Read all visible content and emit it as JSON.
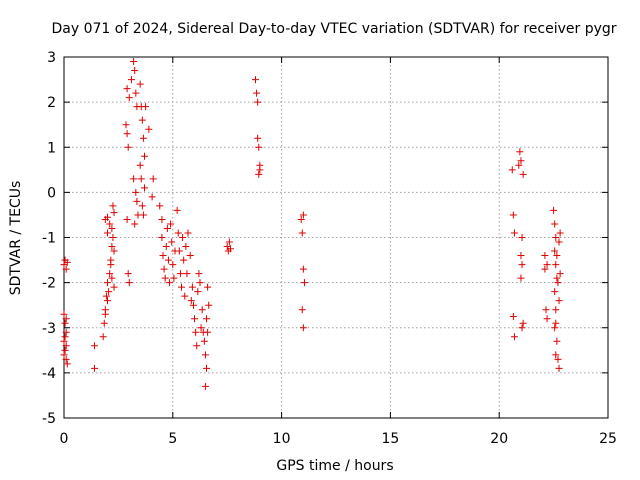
{
  "chart_data": {
    "type": "scatter",
    "title": "Day 071 of 2024, Sidereal Day-to-day VTEC variation (SDTVAR) for receiver pygr",
    "xlabel": "GPS time / hours",
    "ylabel": "SDTVAR / TECUs",
    "xlim": [
      0,
      25
    ],
    "ylim": [
      -5,
      3
    ],
    "xticks": [
      0,
      5,
      10,
      15,
      20,
      25
    ],
    "yticks": [
      -5,
      -4,
      -3,
      -2,
      -1,
      0,
      1,
      2,
      3
    ],
    "xtick_labels": [
      "0",
      "5",
      "10",
      "15",
      "20",
      "25"
    ],
    "ytick_labels": [
      "-5",
      "-4",
      "-3",
      "-2",
      "-1",
      "0",
      "1",
      "2",
      "3"
    ],
    "grid": true,
    "marker": "+",
    "color": "#e00000",
    "series": [
      {
        "name": "SDTVAR",
        "points": [
          [
            0.0,
            -1.6
          ],
          [
            0.05,
            -1.5
          ],
          [
            0.1,
            -1.7
          ],
          [
            0.15,
            -1.55
          ],
          [
            0.0,
            -2.7
          ],
          [
            0.05,
            -2.9
          ],
          [
            0.1,
            -3.1
          ],
          [
            0.0,
            -3.3
          ],
          [
            0.05,
            -3.5
          ],
          [
            0.1,
            -3.7
          ],
          [
            0.15,
            -3.8
          ],
          [
            0.0,
            -3.6
          ],
          [
            0.1,
            -3.4
          ],
          [
            0.05,
            -3.2
          ],
          [
            0.1,
            -2.8
          ],
          [
            1.4,
            -3.4
          ],
          [
            1.4,
            -3.9
          ],
          [
            1.8,
            -3.2
          ],
          [
            1.85,
            -2.9
          ],
          [
            1.9,
            -2.6
          ],
          [
            1.95,
            -2.3
          ],
          [
            2.0,
            -2.0
          ],
          [
            1.9,
            -2.7
          ],
          [
            2.0,
            -2.4
          ],
          [
            2.05,
            -2.2
          ],
          [
            2.1,
            -1.8
          ],
          [
            2.15,
            -1.5
          ],
          [
            2.2,
            -1.2
          ],
          [
            2.25,
            -1.0
          ],
          [
            2.3,
            -2.1
          ],
          [
            2.1,
            -0.7
          ],
          [
            2.0,
            -0.55
          ],
          [
            2.2,
            -0.8
          ],
          [
            2.25,
            -0.3
          ],
          [
            2.3,
            -0.45
          ],
          [
            1.9,
            -0.6
          ],
          [
            2.0,
            -0.9
          ],
          [
            2.15,
            -1.6
          ],
          [
            2.2,
            -1.9
          ],
          [
            2.3,
            -1.3
          ],
          [
            2.85,
            1.5
          ],
          [
            2.9,
            1.3
          ],
          [
            2.95,
            1.0
          ],
          [
            2.9,
            2.3
          ],
          [
            3.0,
            2.1
          ],
          [
            3.1,
            2.5
          ],
          [
            3.2,
            2.9
          ],
          [
            3.25,
            2.7
          ],
          [
            3.3,
            2.2
          ],
          [
            3.35,
            1.9
          ],
          [
            3.2,
            0.3
          ],
          [
            3.3,
            0.0
          ],
          [
            3.35,
            -0.2
          ],
          [
            3.4,
            -0.5
          ],
          [
            3.25,
            -0.7
          ],
          [
            2.9,
            -0.6
          ],
          [
            2.95,
            -1.8
          ],
          [
            3.0,
            -2.0
          ],
          [
            3.5,
            2.4
          ],
          [
            3.55,
            1.9
          ],
          [
            3.6,
            1.6
          ],
          [
            3.65,
            1.2
          ],
          [
            3.7,
            0.8
          ],
          [
            3.5,
            0.6
          ],
          [
            3.55,
            0.3
          ],
          [
            3.6,
            -0.3
          ],
          [
            3.65,
            -0.5
          ],
          [
            3.7,
            0.1
          ],
          [
            3.75,
            1.9
          ],
          [
            3.9,
            1.4
          ],
          [
            4.1,
            0.3
          ],
          [
            4.05,
            -0.1
          ],
          [
            4.4,
            -0.3
          ],
          [
            4.5,
            -0.6
          ],
          [
            4.5,
            -1.0
          ],
          [
            4.55,
            -1.4
          ],
          [
            4.6,
            -1.7
          ],
          [
            4.65,
            -1.9
          ],
          [
            4.7,
            -1.2
          ],
          [
            4.75,
            -0.8
          ],
          [
            4.8,
            -1.5
          ],
          [
            4.85,
            -2.0
          ],
          [
            4.9,
            -0.7
          ],
          [
            4.95,
            -1.1
          ],
          [
            5.0,
            -1.6
          ],
          [
            5.05,
            -1.9
          ],
          [
            5.1,
            -1.3
          ],
          [
            5.2,
            -0.4
          ],
          [
            5.25,
            -0.9
          ],
          [
            5.3,
            -1.3
          ],
          [
            5.35,
            -1.8
          ],
          [
            5.4,
            -2.1
          ],
          [
            5.45,
            -1.0
          ],
          [
            5.5,
            -1.5
          ],
          [
            5.55,
            -2.3
          ],
          [
            5.6,
            -1.2
          ],
          [
            5.65,
            -1.8
          ],
          [
            5.7,
            -0.9
          ],
          [
            5.8,
            -1.4
          ],
          [
            5.85,
            -2.4
          ],
          [
            5.9,
            -2.1
          ],
          [
            5.95,
            -2.5
          ],
          [
            6.0,
            -2.8
          ],
          [
            6.05,
            -3.1
          ],
          [
            6.1,
            -3.4
          ],
          [
            6.15,
            -2.2
          ],
          [
            6.2,
            -1.8
          ],
          [
            6.25,
            -2.0
          ],
          [
            6.3,
            -3.0
          ],
          [
            6.35,
            -2.6
          ],
          [
            6.4,
            -3.1
          ],
          [
            6.45,
            -3.3
          ],
          [
            6.5,
            -3.6
          ],
          [
            6.55,
            -3.9
          ],
          [
            6.5,
            -4.3
          ],
          [
            6.6,
            -2.1
          ],
          [
            6.65,
            -2.5
          ],
          [
            6.55,
            -2.8
          ],
          [
            6.6,
            -3.1
          ],
          [
            7.5,
            -1.2
          ],
          [
            7.55,
            -1.3
          ],
          [
            7.6,
            -1.1
          ],
          [
            7.65,
            -1.25
          ],
          [
            8.8,
            2.5
          ],
          [
            8.85,
            2.2
          ],
          [
            8.9,
            1.2
          ],
          [
            8.95,
            1.0
          ],
          [
            9.0,
            0.6
          ],
          [
            8.95,
            0.4
          ],
          [
            9.0,
            0.5
          ],
          [
            8.9,
            2.0
          ],
          [
            10.9,
            -0.6
          ],
          [
            10.95,
            -0.9
          ],
          [
            11.0,
            -1.7
          ],
          [
            11.05,
            -2.0
          ],
          [
            10.95,
            -2.6
          ],
          [
            11.0,
            -3.0
          ],
          [
            11.0,
            -0.5
          ],
          [
            20.6,
            0.5
          ],
          [
            20.65,
            -0.5
          ],
          [
            20.7,
            -0.9
          ],
          [
            20.65,
            -2.75
          ],
          [
            20.7,
            -3.2
          ],
          [
            20.9,
            0.6
          ],
          [
            20.95,
            0.9
          ],
          [
            21.0,
            0.7
          ],
          [
            21.05,
            -1.0
          ],
          [
            21.0,
            -1.4
          ],
          [
            21.05,
            -1.6
          ],
          [
            21.0,
            -1.9
          ],
          [
            21.1,
            -2.9
          ],
          [
            21.05,
            -3.0
          ],
          [
            21.1,
            0.4
          ],
          [
            22.1,
            -1.7
          ],
          [
            22.15,
            -2.6
          ],
          [
            22.2,
            -2.8
          ],
          [
            22.1,
            -1.4
          ],
          [
            22.2,
            -1.6
          ],
          [
            22.5,
            -0.4
          ],
          [
            22.55,
            -0.7
          ],
          [
            22.6,
            -1.0
          ],
          [
            22.55,
            -1.3
          ],
          [
            22.6,
            -1.6
          ],
          [
            22.65,
            -1.9
          ],
          [
            22.55,
            -2.2
          ],
          [
            22.6,
            -2.6
          ],
          [
            22.55,
            -3.0
          ],
          [
            22.65,
            -3.3
          ],
          [
            22.6,
            -3.6
          ],
          [
            22.7,
            -3.7
          ],
          [
            22.75,
            -3.9
          ],
          [
            22.7,
            -2.0
          ],
          [
            22.75,
            -2.4
          ],
          [
            22.8,
            -0.9
          ],
          [
            22.75,
            -1.1
          ],
          [
            22.8,
            -1.8
          ],
          [
            22.6,
            -2.9
          ],
          [
            22.65,
            -1.4
          ]
        ]
      }
    ]
  }
}
